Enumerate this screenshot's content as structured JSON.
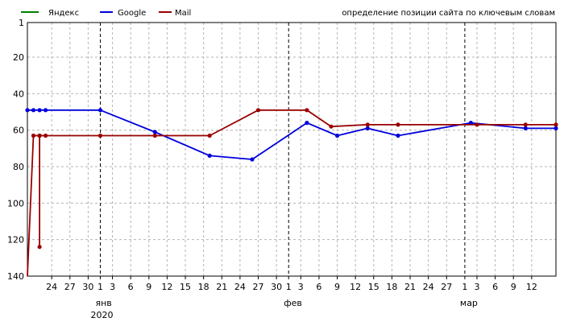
{
  "caption": "определение позиции сайта по ключевым словам",
  "chart_data": {
    "type": "line",
    "title": "",
    "xlabel": "",
    "ylabel": "",
    "y_reversed": true,
    "ylim": [
      1,
      140
    ],
    "y_ticks": [
      1,
      20,
      40,
      60,
      80,
      100,
      120,
      140
    ],
    "x_range": [
      "2019-12-20",
      "2020-03-16"
    ],
    "x_tick_dates": [
      "2019-12-24",
      "2019-12-27",
      "2019-12-30",
      "2020-01-01",
      "2020-01-03",
      "2020-01-06",
      "2020-01-09",
      "2020-01-12",
      "2020-01-15",
      "2020-01-18",
      "2020-01-21",
      "2020-01-24",
      "2020-01-27",
      "2020-01-30",
      "2020-02-01",
      "2020-02-03",
      "2020-02-06",
      "2020-02-09",
      "2020-02-12",
      "2020-02-15",
      "2020-02-18",
      "2020-02-21",
      "2020-02-24",
      "2020-02-27",
      "2020-03-01",
      "2020-03-03",
      "2020-03-06",
      "2020-03-09",
      "2020-03-12"
    ],
    "x_tick_labels": [
      "24",
      "27",
      "30",
      "1",
      "3",
      "6",
      "9",
      "12",
      "15",
      "18",
      "21",
      "24",
      "27",
      "30",
      "1",
      "3",
      "6",
      "9",
      "12",
      "15",
      "18",
      "21",
      "24",
      "27",
      "1",
      "3",
      "6",
      "9",
      "12"
    ],
    "month_boundaries": [
      "2020-01-01",
      "2020-02-01",
      "2020-03-01"
    ],
    "month_labels": [
      {
        "date": "2020-01-01",
        "text": "янв"
      },
      {
        "date": "2020-02-01",
        "text": "фев"
      },
      {
        "date": "2020-03-01",
        "text": "мар"
      }
    ],
    "year_label": {
      "date": "2020-01-01",
      "text": "2020"
    },
    "grid": true,
    "legend_position": "top-left",
    "series": [
      {
        "name": "Яндекс",
        "color": "#008000",
        "points": []
      },
      {
        "name": "Google",
        "color": "#0000dd",
        "points": [
          {
            "x": "2019-12-20",
            "y": 49
          },
          {
            "x": "2019-12-21",
            "y": 49
          },
          {
            "x": "2019-12-22",
            "y": 49
          },
          {
            "x": "2019-12-23",
            "y": 49
          },
          {
            "x": "2020-01-01",
            "y": 49
          },
          {
            "x": "2020-01-10",
            "y": 61
          },
          {
            "x": "2020-01-19",
            "y": 74
          },
          {
            "x": "2020-01-26",
            "y": 76
          },
          {
            "x": "2020-02-04",
            "y": 56
          },
          {
            "x": "2020-02-09",
            "y": 63
          },
          {
            "x": "2020-02-14",
            "y": 59
          },
          {
            "x": "2020-02-19",
            "y": 63
          },
          {
            "x": "2020-03-02",
            "y": 56
          },
          {
            "x": "2020-03-11",
            "y": 59
          },
          {
            "x": "2020-03-16",
            "y": 59
          }
        ]
      },
      {
        "name": "Mail",
        "color": "#990000",
        "points": [
          {
            "x": "2019-12-20",
            "y": 140
          },
          {
            "x": "2019-12-21",
            "y": 63
          },
          {
            "x": "2019-12-22",
            "y": 63
          },
          {
            "x": "2019-12-22",
            "y": 124
          },
          {
            "x": "2019-12-22",
            "y": 63
          },
          {
            "x": "2019-12-23",
            "y": 63
          },
          {
            "x": "2020-01-01",
            "y": 63
          },
          {
            "x": "2020-01-10",
            "y": 63
          },
          {
            "x": "2020-01-19",
            "y": 63
          },
          {
            "x": "2020-01-27",
            "y": 49
          },
          {
            "x": "2020-02-04",
            "y": 49
          },
          {
            "x": "2020-02-08",
            "y": 58
          },
          {
            "x": "2020-02-14",
            "y": 57
          },
          {
            "x": "2020-02-19",
            "y": 57
          },
          {
            "x": "2020-03-03",
            "y": 57
          },
          {
            "x": "2020-03-11",
            "y": 57
          },
          {
            "x": "2020-03-16",
            "y": 57
          }
        ]
      }
    ]
  }
}
